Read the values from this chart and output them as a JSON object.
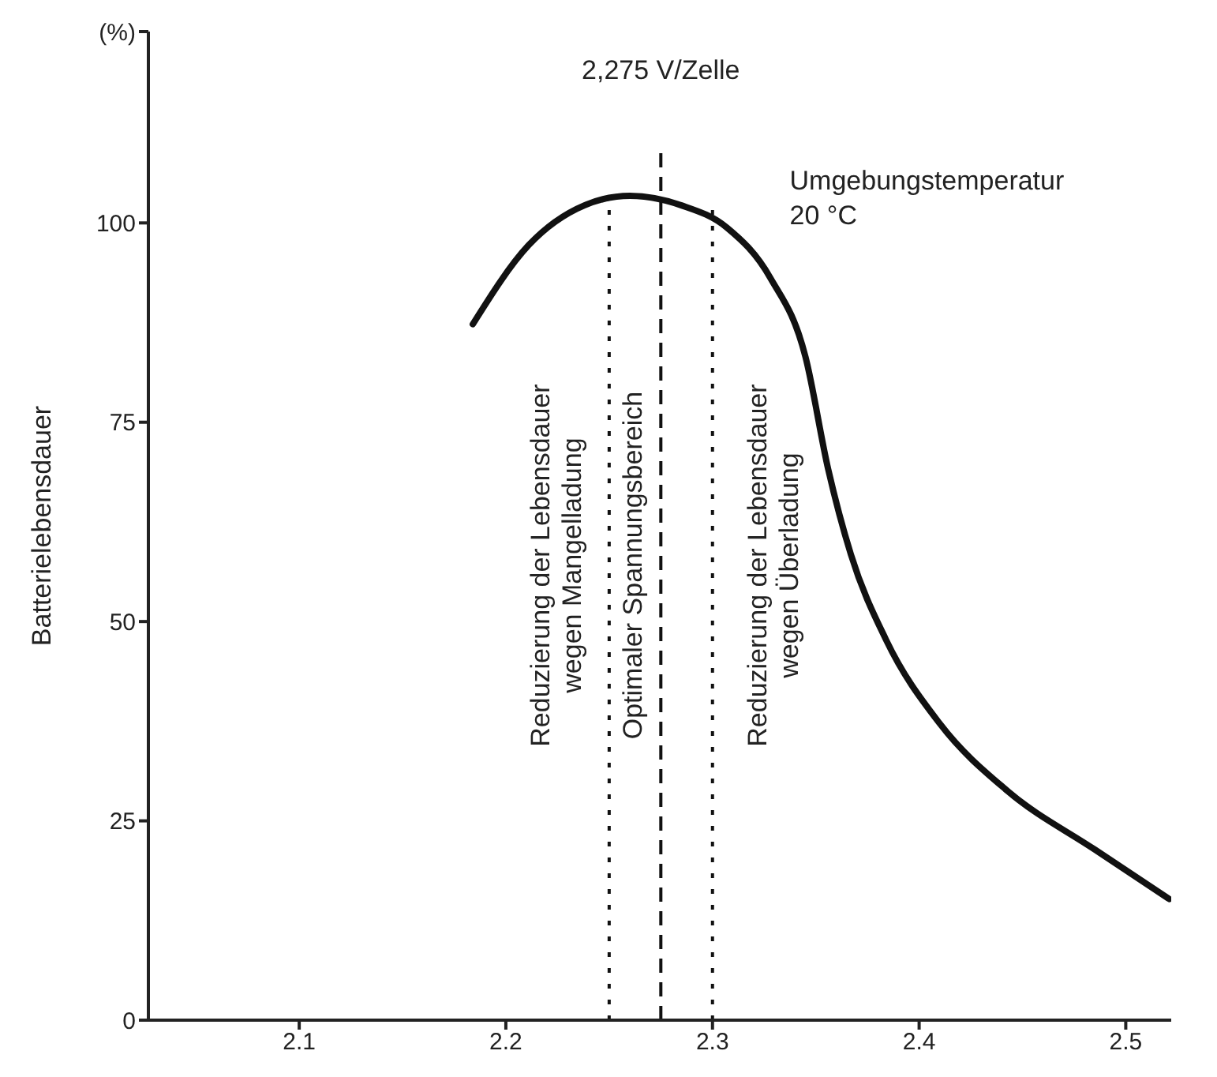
{
  "chart_data": {
    "type": "line",
    "ylabel": "Batterielebensdauer",
    "x": [
      2.184,
      2.211,
      2.238,
      2.26,
      2.285,
      2.307,
      2.328,
      2.345,
      2.356,
      2.367,
      2.384,
      2.41,
      2.443,
      2.485,
      2.521
    ],
    "series": [
      {
        "color": "#111111",
        "values": [
          87.3,
          97.2,
          102.2,
          103.4,
          102.2,
          99.4,
          93.1,
          83.2,
          69.1,
          58.4,
          47.7,
          37.2,
          28.7,
          21.4,
          15.2
        ]
      }
    ],
    "xlim": [
      2.027,
      2.522
    ],
    "xticks": [
      2.1,
      2.2,
      2.3,
      2.4,
      2.5
    ],
    "ylim": [
      0,
      124
    ],
    "yticks": [
      0,
      25,
      50,
      75,
      100,
      {
        "value": 124,
        "label": "(%)"
      }
    ],
    "grid": false,
    "marker": "none",
    "line_style": "solid",
    "ref_lines": [
      {
        "axis": "x",
        "value": 2.25,
        "line_style": "dotted",
        "color": "#111111"
      },
      {
        "axis": "x",
        "value": 2.275,
        "label": "2,275 V/Zelle",
        "line_style": "dashed",
        "color": "#111111"
      },
      {
        "axis": "x",
        "value": 2.3,
        "line_style": "dotted",
        "color": "#111111"
      }
    ],
    "annotations": [
      "Reduzierung der Lebensdauer\nwegen Mangelladung",
      "Optimaler Spannungsbereich",
      "Reduzierung der Lebensdauer\nwegen Überladung",
      "Umgebungstemperatur\n20 °C"
    ]
  }
}
